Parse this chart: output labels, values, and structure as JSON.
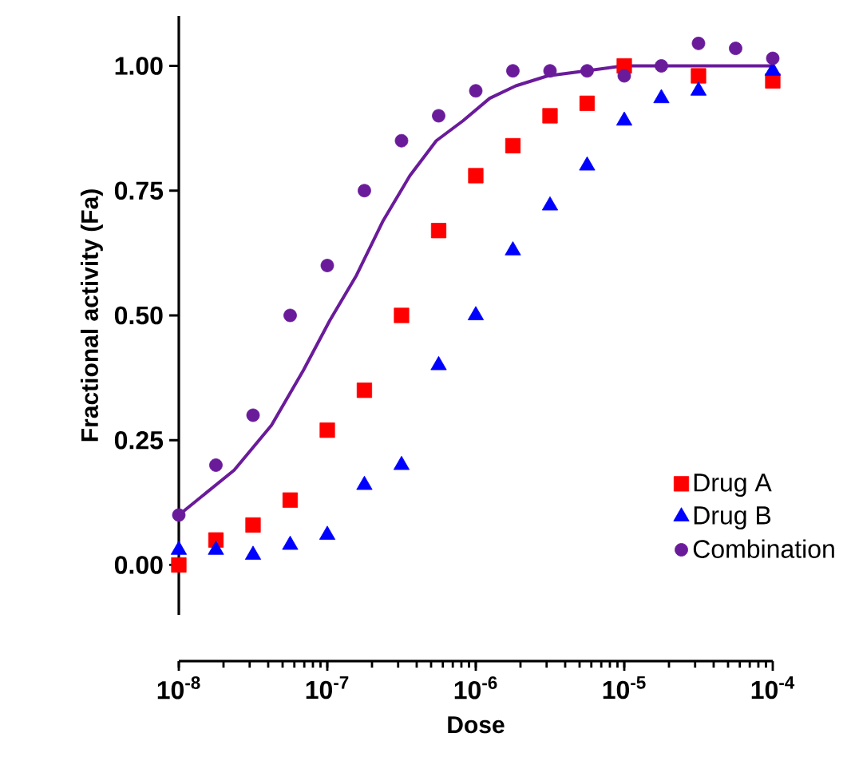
{
  "chart_data": {
    "type": "scatter",
    "xlabel": "Dose",
    "ylabel": "Fractional activity  (Fa)",
    "log": "x",
    "x": [
      1e-08,
      1.778e-08,
      3.162e-08,
      5.623e-08,
      1e-07,
      1.778e-07,
      3.162e-07,
      5.623e-07,
      1e-06,
      1.778e-06,
      3.162e-06,
      5.623e-06,
      1e-05,
      1.778e-05,
      3.162e-05,
      5.623e-05,
      0.0001
    ],
    "series": [
      {
        "name": "Drug A",
        "color": "#ff0000",
        "marker": "square",
        "values": [
          0.0,
          0.05,
          0.08,
          0.13,
          0.27,
          0.35,
          0.5,
          0.67,
          0.78,
          0.84,
          0.9,
          0.925,
          1.0,
          null,
          0.98,
          null,
          0.97
        ]
      },
      {
        "name": "Drug B",
        "color": "#0000ff",
        "marker": "triangle",
        "values": [
          0.03,
          0.03,
          0.02,
          0.04,
          0.06,
          0.16,
          0.2,
          0.4,
          0.5,
          0.63,
          0.72,
          0.8,
          0.89,
          0.935,
          0.95,
          null,
          0.99
        ]
      },
      {
        "name": "Combination",
        "color": "#6a1b9a",
        "marker": "circle",
        "values": [
          0.1,
          0.2,
          0.3,
          0.5,
          0.6,
          0.75,
          0.85,
          0.9,
          0.95,
          0.99,
          0.99,
          0.99,
          0.98,
          1.0,
          1.045,
          1.035,
          1.015
        ]
      },
      {
        "type": "line",
        "color": "#6a1b9a",
        "marker": "none",
        "line_style": "solid",
        "x": [
          1e-08,
          2.36e-08,
          4.21e-08,
          6.9e-08,
          1.04e-07,
          1.57e-07,
          2.38e-07,
          3.6e-07,
          5.42e-07,
          8.2e-07,
          1.24e-06,
          1.86e-06,
          3.05e-06,
          5.52e-06,
          9.75e-06,
          0.0001
        ],
        "values": [
          0.1,
          0.19,
          0.28,
          0.39,
          0.49,
          0.58,
          0.69,
          0.78,
          0.85,
          0.89,
          0.935,
          0.96,
          0.98,
          0.99,
          1.0,
          1.0
        ]
      }
    ],
    "xlim": [
      1e-08,
      0.0001
    ],
    "xticks": [
      {
        "value": 1e-08,
        "label": "10$^{-8}$"
      },
      {
        "value": 1e-07,
        "label": "10$^{-7}$"
      },
      {
        "value": 1e-06,
        "label": "10$^{-6}$"
      },
      {
        "value": 1e-05,
        "label": "10$^{-5}$"
      },
      {
        "value": 0.0001,
        "label": "10$^{-4}$"
      }
    ],
    "ylim": [
      -0.1,
      1.1
    ],
    "yticks": [
      {
        "value": 0,
        "label": "0.00"
      },
      {
        "value": 0.25,
        "label": "0.25"
      },
      {
        "value": 0.5,
        "label": "0.50"
      },
      {
        "value": 0.75,
        "label": "0.75"
      },
      {
        "value": 1,
        "label": "1.00"
      }
    ],
    "grid": false,
    "legend": "bottom right"
  }
}
